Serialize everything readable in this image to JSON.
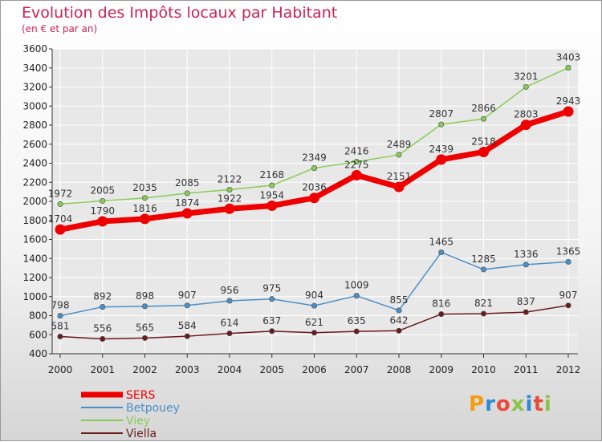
{
  "header": {
    "title": "Evolution des Impôts locaux par Habitant",
    "subtitle": "(en € et par an)"
  },
  "logo": {
    "text": "Proxiti",
    "letter_colors": [
      "#f39c12",
      "#2a8ad4",
      "#e74c3c",
      "#8bc34a",
      "#2a8ad4",
      "#e74c3c",
      "#8bc34a"
    ]
  },
  "colors": {
    "title": "#cc2255",
    "grid": "#ffffff",
    "axis": "#333333"
  },
  "chart_data": {
    "type": "line",
    "title": "Evolution des Impôts locaux par Habitant",
    "subtitle": "(en € et par an)",
    "xlabel": "",
    "ylabel": "",
    "x": [
      "2000",
      "2001",
      "2002",
      "2003",
      "2004",
      "2005",
      "2006",
      "2007",
      "2008",
      "2009",
      "2010",
      "2011",
      "2012"
    ],
    "ylim": [
      400,
      3600
    ],
    "yticks": [
      "400",
      "600",
      "800",
      "1000",
      "1200",
      "1400",
      "1600",
      "1800",
      "2000",
      "2200",
      "2400",
      "2600",
      "2800",
      "3000",
      "3200",
      "3400",
      "3600"
    ],
    "grid": true,
    "legend_position": "bottom-left",
    "series": [
      {
        "name": "SERS",
        "color": "#ee0000",
        "values": [
          1704,
          1790,
          1816,
          1874,
          1922,
          1954,
          2036,
          2275,
          2151,
          2439,
          2518,
          2803,
          2943
        ],
        "labels": [
          "1704",
          "1790",
          "1816",
          "1874",
          "1922",
          "1954",
          "2036",
          "2275",
          "2151",
          "2439",
          "2518",
          "2803",
          "2943"
        ]
      },
      {
        "name": "Betpouey",
        "color": "#4a90c8",
        "values": [
          798,
          892,
          898,
          907,
          956,
          975,
          904,
          1009,
          855,
          1465,
          1285,
          1336,
          1365
        ],
        "labels": [
          "798",
          "892",
          "898",
          "907",
          "956",
          "975",
          "904",
          "1009",
          "855",
          "1465",
          "1285",
          "1336",
          "1365"
        ]
      },
      {
        "name": "Viey",
        "color": "#88cc55",
        "values": [
          1972,
          2005,
          2035,
          2085,
          2122,
          2168,
          2349,
          2416,
          2489,
          2807,
          2866,
          3201,
          3403
        ],
        "labels": [
          "1972",
          "2005",
          "2035",
          "2085",
          "2122",
          "2168",
          "2349",
          "2416",
          "2489",
          "2807",
          "2866",
          "3201",
          "3403"
        ]
      },
      {
        "name": "Viella",
        "color": "#6b1a1a",
        "values": [
          581,
          556,
          565,
          584,
          614,
          637,
          621,
          635,
          642,
          816,
          821,
          837,
          907
        ],
        "labels": [
          "581",
          "556",
          "565",
          "584",
          "614",
          "637",
          "621",
          "635",
          "642",
          "816",
          "821",
          "837",
          "907"
        ]
      }
    ]
  }
}
